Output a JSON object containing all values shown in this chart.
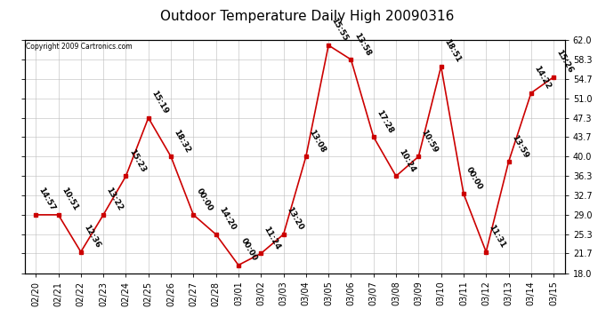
{
  "title": "Outdoor Temperature Daily High 20090316",
  "copyright": "Copyright 2009 Cartronics.com",
  "dates": [
    "02/20",
    "02/21",
    "02/22",
    "02/23",
    "02/24",
    "02/25",
    "02/26",
    "02/27",
    "02/28",
    "03/01",
    "03/02",
    "03/03",
    "03/04",
    "03/05",
    "03/06",
    "03/07",
    "03/08",
    "03/09",
    "03/10",
    "03/11",
    "03/12",
    "03/13",
    "03/14",
    "03/15"
  ],
  "times": [
    "14:57",
    "10:51",
    "12:36",
    "13:22",
    "15:23",
    "15:19",
    "18:32",
    "00:00",
    "14:20",
    "00:00",
    "11:24",
    "13:20",
    "13:08",
    "15:55",
    "13:58",
    "17:28",
    "10:24",
    "10:59",
    "18:51",
    "00:00",
    "11:31",
    "13:59",
    "14:22",
    "15:26"
  ],
  "values": [
    29.0,
    29.0,
    22.0,
    29.0,
    36.3,
    47.3,
    40.0,
    29.0,
    25.3,
    19.5,
    21.7,
    25.3,
    40.0,
    61.0,
    58.3,
    43.7,
    36.3,
    40.0,
    57.0,
    33.0,
    22.0,
    39.0,
    52.0,
    55.0
  ],
  "ylim": [
    18.0,
    62.0
  ],
  "yticks": [
    18.0,
    21.7,
    25.3,
    29.0,
    32.7,
    36.3,
    40.0,
    43.7,
    47.3,
    51.0,
    54.7,
    58.3,
    62.0
  ],
  "ytick_labels": [
    "18.0",
    "21.7",
    "25.3",
    "29.0",
    "32.7",
    "36.3",
    "40.0",
    "43.7",
    "47.3",
    "51.0",
    "54.7",
    "58.3",
    "62.0"
  ],
  "line_color": "#cc0000",
  "marker_color": "#cc0000",
  "bg_color": "#ffffff",
  "grid_color": "#bbbbbb",
  "title_fontsize": 11,
  "annotation_fontsize": 6.5,
  "tick_fontsize": 7
}
